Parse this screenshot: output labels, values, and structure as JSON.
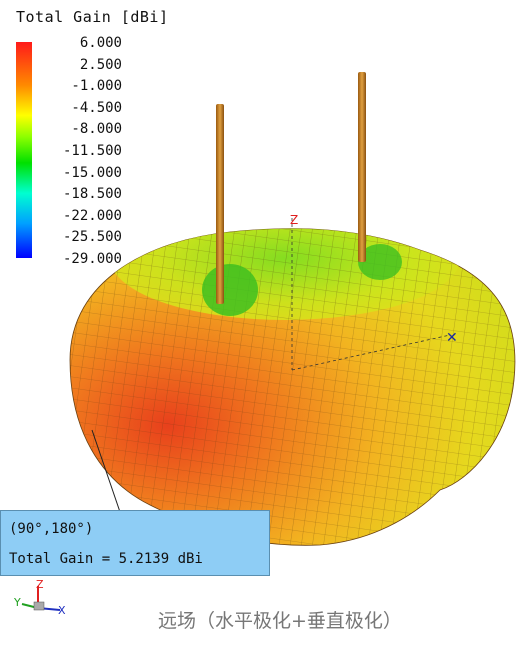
{
  "legend": {
    "title": "Total Gain [dBi]",
    "labels": [
      "6.000",
      "2.500",
      "-1.000",
      "-4.500",
      "-8.000",
      "-11.500",
      "-15.000",
      "-18.500",
      "-22.000",
      "-25.500",
      "-29.000"
    ]
  },
  "tooltip": {
    "coords": "(90°,180°)",
    "value": "Total Gain = 5.2139 dBi"
  },
  "axes": {
    "z": "Z",
    "x": "X",
    "y": "Y"
  },
  "caption": "远场（水平极化+垂直极化）",
  "colors": {
    "surface_max": "#e8401c",
    "surface_mid": "#f0a020",
    "surface_low": "#d8e020",
    "rod": "#c8821e",
    "tooltip_bg": "#8ecdf5"
  }
}
